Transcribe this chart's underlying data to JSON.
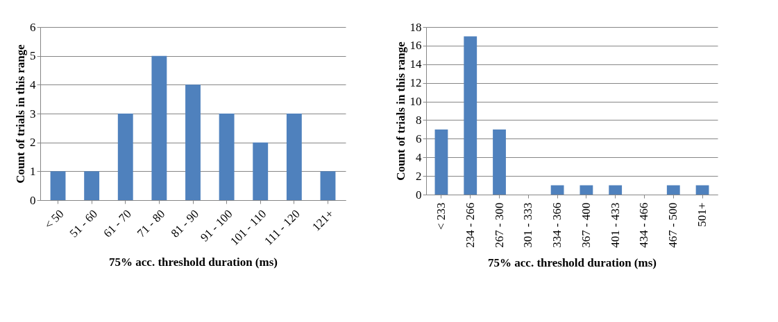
{
  "chart_data": [
    {
      "type": "bar",
      "xlabel": "75% acc. threshold duration (ms)",
      "ylabel": "Count of trials in this range",
      "categories": [
        "< 50",
        "51 - 60",
        "61 - 70",
        "71 - 80",
        "81 - 90",
        "91 - 100",
        "101 - 110",
        "111 - 120",
        "121+"
      ],
      "values": [
        1,
        1,
        3,
        5,
        4,
        3,
        2,
        3,
        1
      ],
      "color": "#4f81bd",
      "ylim": [
        0,
        6
      ],
      "yticks": [
        0,
        1,
        2,
        3,
        4,
        5,
        6
      ],
      "grid": "y"
    },
    {
      "type": "bar",
      "xlabel": "75% acc. threshold duration (ms)",
      "ylabel": "Count of trials in this range",
      "categories": [
        "< 233",
        "234 - 266",
        "267 - 300",
        "301 - 333",
        "334 - 366",
        "367 - 400",
        "401 - 433",
        "434 - 466",
        "467 - 500",
        "501+"
      ],
      "values": [
        7,
        17,
        7,
        0,
        1,
        1,
        1,
        0,
        1,
        1
      ],
      "color": "#4f81bd",
      "ylim": [
        0,
        18
      ],
      "yticks": [
        0,
        2,
        4,
        6,
        8,
        10,
        12,
        14,
        16,
        18
      ],
      "grid": "y"
    }
  ]
}
